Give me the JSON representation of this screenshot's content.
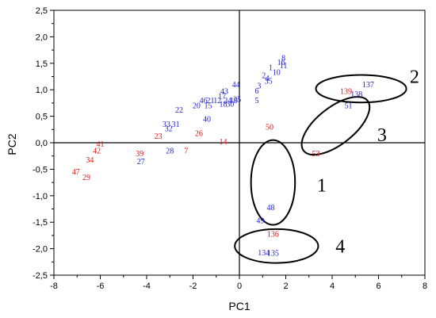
{
  "chart_data": {
    "type": "scatter",
    "title": "",
    "xlabel": "PC1",
    "ylabel": "PC2",
    "xlim": [
      -8,
      8
    ],
    "ylim": [
      -2.5,
      2.5
    ],
    "x_ticks": [
      -8,
      -6,
      -4,
      -2,
      0,
      2,
      4,
      6,
      8
    ],
    "y_ticks": [
      "2,5",
      "2,0",
      "1,5",
      "1,0",
      "0,5",
      "0,0",
      "-0,5",
      "-1,0",
      "-1,5",
      "-2,0",
      "-2,5"
    ],
    "y_tick_values": [
      2.5,
      2.0,
      1.5,
      1.0,
      0.5,
      0.0,
      -0.5,
      -1.0,
      -1.5,
      -2.0,
      -2.5
    ],
    "grid": false,
    "colors": {
      "blue": "#2222cc",
      "red": "#dd1111"
    },
    "points": [
      {
        "label": "8",
        "x": 1.9,
        "y": 1.6,
        "color": "blue"
      },
      {
        "label": "16",
        "x": 1.8,
        "y": 1.52,
        "color": "blue"
      },
      {
        "label": "11",
        "x": 1.9,
        "y": 1.46,
        "color": "blue"
      },
      {
        "label": "1",
        "x": 1.35,
        "y": 1.42,
        "color": "blue"
      },
      {
        "label": "10",
        "x": 1.6,
        "y": 1.33,
        "color": "blue"
      },
      {
        "label": "2",
        "x": 1.05,
        "y": 1.27,
        "color": "blue"
      },
      {
        "label": "4",
        "x": 1.2,
        "y": 1.22,
        "color": "blue"
      },
      {
        "label": "35",
        "x": 1.25,
        "y": 1.17,
        "color": "blue"
      },
      {
        "label": "3",
        "x": 0.85,
        "y": 1.08,
        "color": "blue"
      },
      {
        "label": "6",
        "x": 0.75,
        "y": 0.98,
        "color": "blue"
      },
      {
        "label": "5",
        "x": 0.75,
        "y": 0.8,
        "color": "blue"
      },
      {
        "label": "44",
        "x": -0.15,
        "y": 1.1,
        "color": "blue"
      },
      {
        "label": "43",
        "x": -0.65,
        "y": 0.97,
        "color": "blue"
      },
      {
        "label": "25",
        "x": -0.1,
        "y": 0.82,
        "color": "blue"
      },
      {
        "label": "17",
        "x": -0.75,
        "y": 0.88,
        "color": "blue"
      },
      {
        "label": "21",
        "x": -1.25,
        "y": 0.8,
        "color": "blue"
      },
      {
        "label": "12",
        "x": -0.95,
        "y": 0.8,
        "color": "blue"
      },
      {
        "label": "46",
        "x": -1.55,
        "y": 0.8,
        "color": "blue"
      },
      {
        "label": "24",
        "x": -0.5,
        "y": 0.8,
        "color": "blue"
      },
      {
        "label": "19",
        "x": -0.25,
        "y": 0.8,
        "color": "blue"
      },
      {
        "label": "18",
        "x": -0.7,
        "y": 0.73,
        "color": "blue"
      },
      {
        "label": "30",
        "x": -0.4,
        "y": 0.73,
        "color": "blue"
      },
      {
        "label": "15",
        "x": -1.35,
        "y": 0.7,
        "color": "blue"
      },
      {
        "label": "20",
        "x": -1.85,
        "y": 0.7,
        "color": "blue"
      },
      {
        "label": "22",
        "x": -2.6,
        "y": 0.62,
        "color": "blue"
      },
      {
        "label": "40",
        "x": -1.4,
        "y": 0.45,
        "color": "blue"
      },
      {
        "label": "33",
        "x": -3.15,
        "y": 0.35,
        "color": "blue"
      },
      {
        "label": "31",
        "x": -2.75,
        "y": 0.35,
        "color": "blue"
      },
      {
        "label": "32",
        "x": -3.05,
        "y": 0.27,
        "color": "blue"
      },
      {
        "label": "28",
        "x": -3.0,
        "y": -0.15,
        "color": "blue"
      },
      {
        "label": "27",
        "x": -4.25,
        "y": -0.35,
        "color": "blue"
      },
      {
        "label": "23",
        "x": -3.5,
        "y": 0.13,
        "color": "red"
      },
      {
        "label": "26",
        "x": -1.75,
        "y": 0.18,
        "color": "red"
      },
      {
        "label": "14",
        "x": -0.7,
        "y": 0.02,
        "color": "red"
      },
      {
        "label": "7",
        "x": -2.3,
        "y": -0.15,
        "color": "red"
      },
      {
        "label": "39",
        "x": -4.3,
        "y": -0.2,
        "color": "red"
      },
      {
        "label": "41",
        "x": -6.0,
        "y": -0.02,
        "color": "red"
      },
      {
        "label": "42",
        "x": -6.15,
        "y": -0.15,
        "color": "red"
      },
      {
        "label": "34",
        "x": -6.45,
        "y": -0.32,
        "color": "red"
      },
      {
        "label": "47",
        "x": -7.05,
        "y": -0.55,
        "color": "red"
      },
      {
        "label": "29",
        "x": -6.6,
        "y": -0.65,
        "color": "red"
      },
      {
        "label": "50",
        "x": 1.3,
        "y": 0.3,
        "color": "red"
      },
      {
        "label": "53",
        "x": 3.3,
        "y": -0.2,
        "color": "red"
      },
      {
        "label": "48",
        "x": 1.35,
        "y": -1.22,
        "color": "blue"
      },
      {
        "label": "49",
        "x": 0.9,
        "y": -1.47,
        "color": "blue"
      },
      {
        "label": "136",
        "x": 1.45,
        "y": -1.72,
        "color": "red"
      },
      {
        "label": "134",
        "x": 1.05,
        "y": -2.07,
        "color": "blue"
      },
      {
        "label": "135",
        "x": 1.45,
        "y": -2.08,
        "color": "blue"
      },
      {
        "label": "137",
        "x": 5.55,
        "y": 1.1,
        "color": "blue"
      },
      {
        "label": "139",
        "x": 4.6,
        "y": 0.97,
        "color": "red"
      },
      {
        "label": "138",
        "x": 5.05,
        "y": 0.92,
        "color": "blue"
      },
      {
        "label": "51",
        "x": 4.7,
        "y": 0.7,
        "color": "blue"
      }
    ],
    "groups": [
      {
        "label": "1",
        "cx": 1.45,
        "cy": -0.75,
        "rx": 0.95,
        "ry": 0.8,
        "angle": 0,
        "label_x": 3.55,
        "label_y": -0.8
      },
      {
        "label": "2",
        "cx": 5.25,
        "cy": 1.02,
        "rx": 1.95,
        "ry": 0.26,
        "angle": 0,
        "label_x": 7.55,
        "label_y": 1.25
      },
      {
        "label": "3",
        "cx": 4.15,
        "cy": 0.32,
        "rx": 1.75,
        "ry": 0.35,
        "angle": -38,
        "label_x": 6.15,
        "label_y": 0.15
      },
      {
        "label": "4",
        "cx": 1.6,
        "cy": -1.95,
        "rx": 1.8,
        "ry": 0.32,
        "angle": 0,
        "label_x": 4.35,
        "label_y": -1.95
      }
    ]
  }
}
